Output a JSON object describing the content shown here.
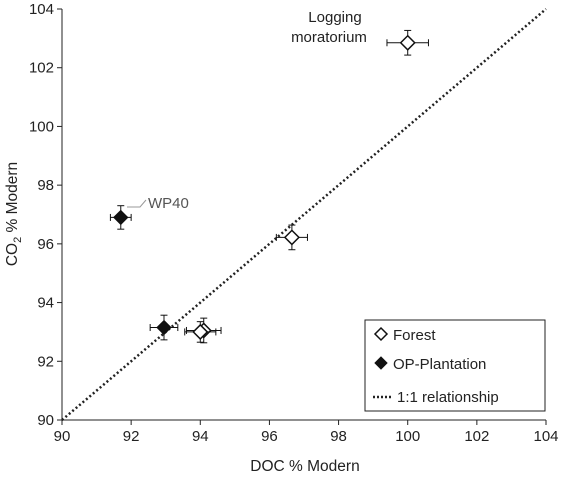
{
  "chart_data": {
    "type": "scatter",
    "xlabel": "DOC % Modern",
    "ylabel": "CO2 % Modern",
    "ylabel_main": "CO",
    "ylabel_sub": "2",
    "ylabel_rest": " % Modern",
    "xlim": [
      90,
      104
    ],
    "ylim": [
      90,
      104
    ],
    "xticks": [
      90,
      92,
      94,
      96,
      98,
      100,
      102,
      104
    ],
    "yticks": [
      90,
      92,
      94,
      96,
      98,
      100,
      102,
      104
    ],
    "grid": false,
    "legend_position": "bottom-right",
    "series": [
      {
        "name": "Forest",
        "marker": "open-diamond",
        "points": [
          {
            "x": 100.0,
            "y": 102.85,
            "xerr": 0.6,
            "yerr": 0.42
          },
          {
            "x": 96.65,
            "y": 96.22,
            "xerr": 0.45,
            "yerr": 0.42
          },
          {
            "x": 94.1,
            "y": 93.05,
            "xerr": 0.5,
            "yerr": 0.42
          },
          {
            "x": 94.0,
            "y": 93.0,
            "xerr": 0.45,
            "yerr": 0.35
          }
        ]
      },
      {
        "name": "OP-Plantation",
        "marker": "filled-diamond",
        "points": [
          {
            "x": 91.7,
            "y": 96.9,
            "xerr": 0.3,
            "yerr": 0.4
          },
          {
            "x": 92.95,
            "y": 93.15,
            "xerr": 0.4,
            "yerr": 0.42
          }
        ]
      },
      {
        "name": "1:1 relationship",
        "style": "dotted-line",
        "points": [
          {
            "x": 90,
            "y": 90
          },
          {
            "x": 104,
            "y": 104
          }
        ]
      }
    ],
    "annotations": [
      {
        "line1": "Logging",
        "line2": "moratorium",
        "x": 100.0,
        "y": 102.85
      },
      {
        "text": "WP40",
        "x": 91.7,
        "y": 96.9
      }
    ]
  },
  "colors": {
    "axis": "#222222",
    "marker": "#111111",
    "annotation": "#555555"
  }
}
